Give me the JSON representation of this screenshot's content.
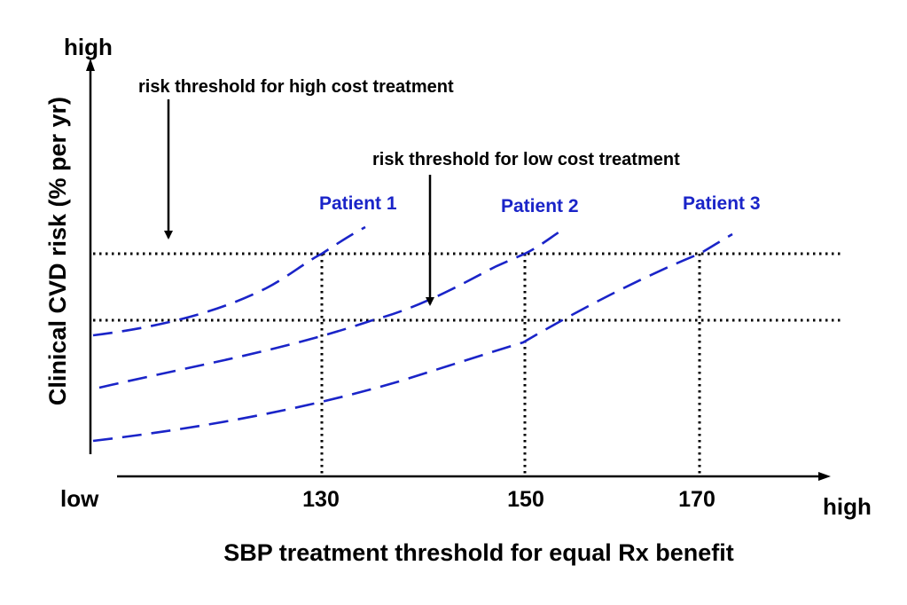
{
  "annotations": {
    "high_cost": "risk threshold for high cost treatment",
    "low_cost": "risk threshold for low cost treatment"
  },
  "y_axis": {
    "title": "Clinical CVD risk (% per yr)",
    "high_label": "high"
  },
  "x_axis": {
    "title": "SBP treatment threshold for equal Rx benefit",
    "low_label": "low",
    "high_label": "high",
    "ticks": [
      "130",
      "150",
      "170"
    ]
  },
  "patients": [
    "Patient 1",
    "Patient 2",
    "Patient 3"
  ],
  "colors": {
    "curve": "#1a24c8",
    "patient_label": "#1a24c8",
    "axis": "#000000"
  }
}
